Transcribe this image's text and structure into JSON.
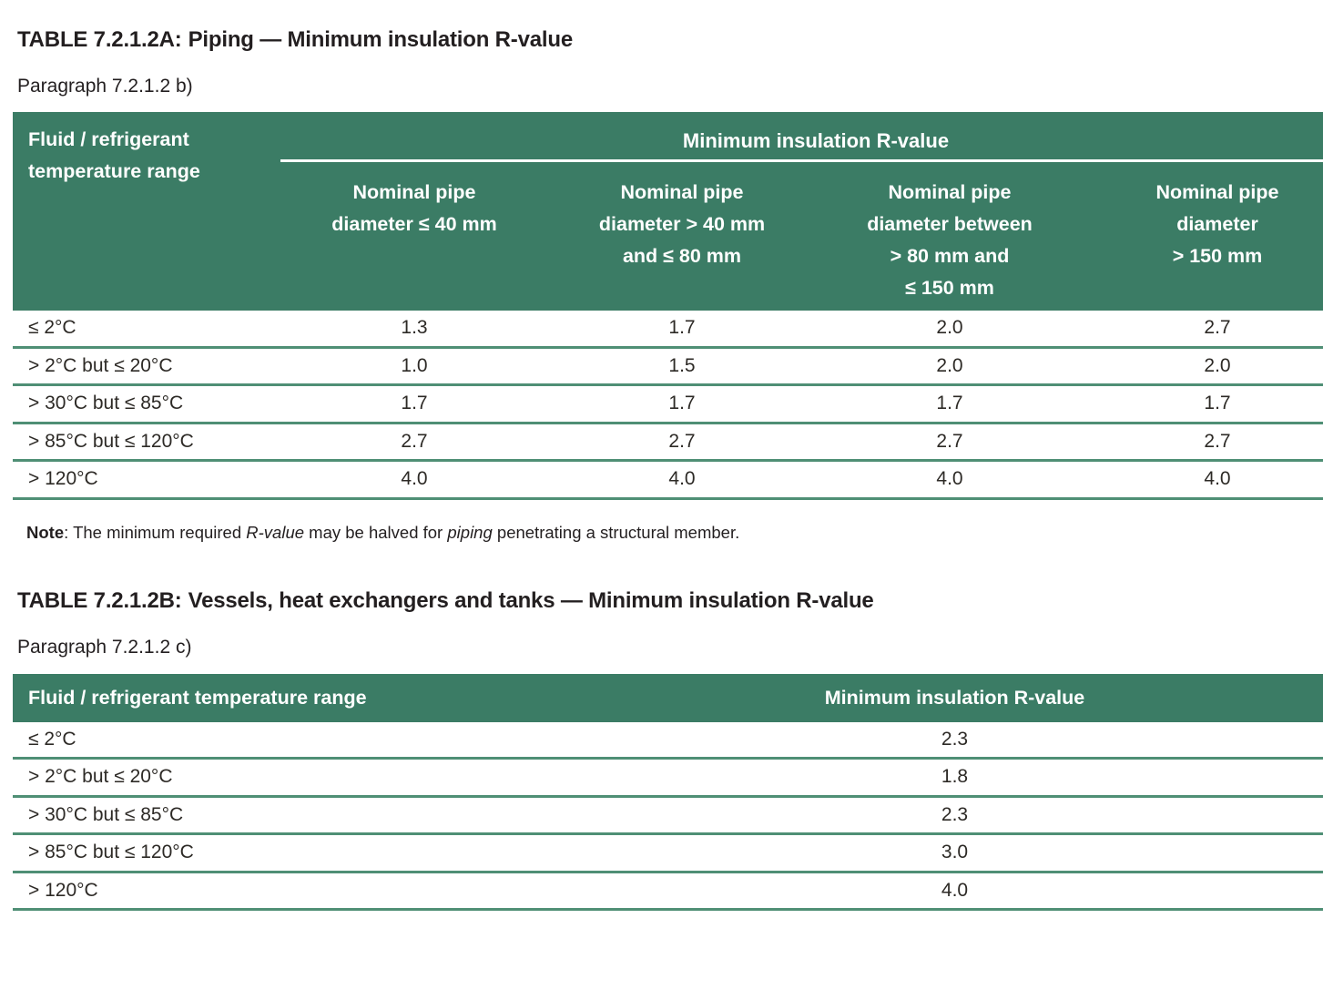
{
  "colors": {
    "header_green": "#3b7c65",
    "row_line_green": "#4f8f75",
    "header_text": "#ffffff",
    "body_text": "#2d2a26"
  },
  "table_a": {
    "title_label": "TABLE 7.2.1.2A:",
    "title_text": "Piping — Minimum insulation R-value",
    "paragraph": "Paragraph 7.2.1.2 b)",
    "corner_header": "Fluid / refrigerant\ntemperature range",
    "group_header": "Minimum insulation R-value",
    "col_headers": [
      "Nominal pipe\ndiameter ≤ 40 mm",
      "Nominal pipe\ndiameter > 40 mm\nand ≤ 80 mm",
      "Nominal pipe\ndiameter between\n> 80 mm and\n≤ 150 mm",
      "Nominal pipe\ndiameter\n> 150 mm"
    ],
    "rows": [
      {
        "range": "≤ 2°C",
        "values": [
          "1.3",
          "1.7",
          "2.0",
          "2.7"
        ]
      },
      {
        "range": "> 2°C but ≤ 20°C",
        "values": [
          "1.0",
          "1.5",
          "2.0",
          "2.0"
        ]
      },
      {
        "range": "> 30°C but ≤ 85°C",
        "values": [
          "1.7",
          "1.7",
          "1.7",
          "1.7"
        ]
      },
      {
        "range": "> 85°C but ≤ 120°C",
        "values": [
          "2.7",
          "2.7",
          "2.7",
          "2.7"
        ]
      },
      {
        "range": "> 120°C",
        "values": [
          "4.0",
          "4.0",
          "4.0",
          "4.0"
        ]
      }
    ],
    "note": {
      "label": "Note",
      "pre": ": The minimum required ",
      "italic1": "R-value",
      "mid": " may be halved for ",
      "italic2": "piping",
      "post": " penetrating a structural member."
    }
  },
  "table_b": {
    "title_label": "TABLE 7.2.1.2B:",
    "title_text": "Vessels, heat exchangers and tanks — Minimum insulation R-value",
    "paragraph": "Paragraph 7.2.1.2 c)",
    "col_headers": [
      "Fluid / refrigerant temperature range",
      "Minimum insulation R-value"
    ],
    "rows": [
      {
        "range": "≤ 2°C",
        "value": "2.3"
      },
      {
        "range": "> 2°C but ≤ 20°C",
        "value": "1.8"
      },
      {
        "range": "> 30°C but ≤ 85°C",
        "value": "2.3"
      },
      {
        "range": "> 85°C but ≤ 120°C",
        "value": "3.0"
      },
      {
        "range": "> 120°C",
        "value": "4.0"
      }
    ]
  }
}
